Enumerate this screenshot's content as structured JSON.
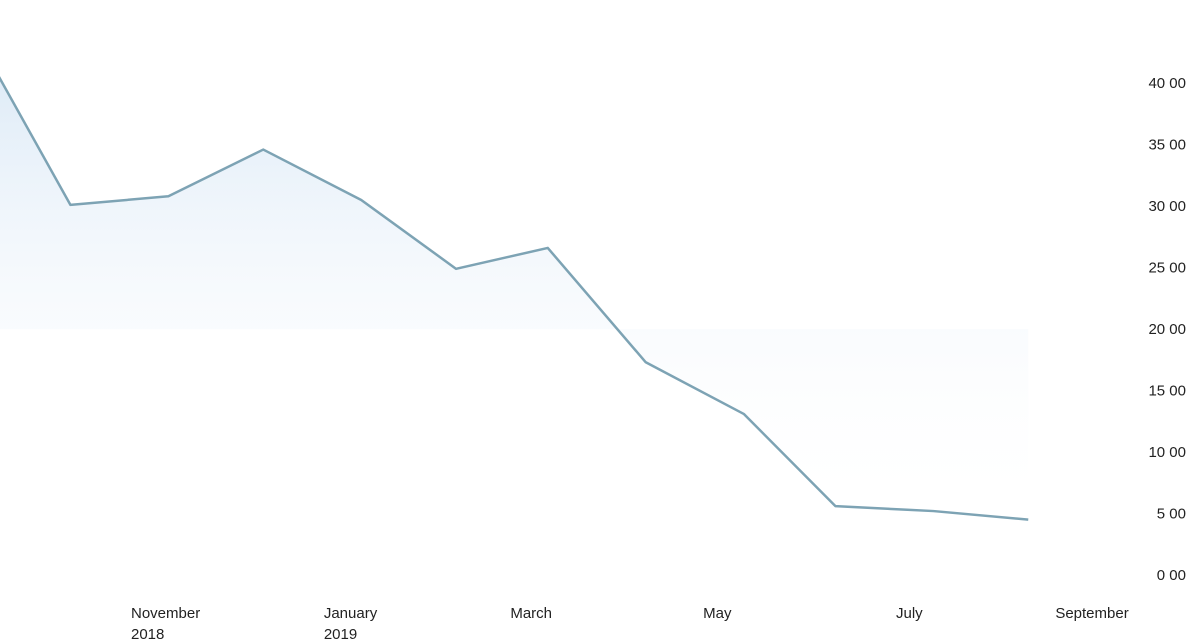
{
  "chart_data": {
    "type": "area",
    "title": "",
    "xlabel": "",
    "ylabel": "",
    "x": [
      "2018-09",
      "2018-10",
      "2018-11",
      "2018-12",
      "2019-01",
      "2019-02",
      "2019-03",
      "2019-04",
      "2019-05",
      "2019-06",
      "2019-07",
      "2019-08",
      "2019-09"
    ],
    "series": [
      {
        "values": [
          45.3,
          30.1,
          30.8,
          34.6,
          30.5,
          24.9,
          26.6,
          17.3,
          13.1,
          5.6,
          5.2,
          4.5
        ],
        "x": [
          "2018-09-13",
          "2018-10-16",
          "2018-11-16",
          "2018-12-16",
          "2019-01-16",
          "2019-02-15",
          "2019-03-16",
          "2019-04-16",
          "2019-05-17",
          "2019-06-15",
          "2019-07-16",
          "2019-08-15"
        ]
      }
    ],
    "y_ticks": [
      "0 00",
      "5 00",
      "10 00",
      "15 00",
      "20 00",
      "25 00",
      "30 00",
      "35 00",
      "40 00"
    ],
    "y_tick_values": [
      0,
      5,
      10,
      15,
      20,
      25,
      30,
      35,
      40
    ],
    "ylim": [
      0,
      45.3
    ],
    "x_ticks": [
      {
        "label": "November",
        "sublabel": "2018",
        "date": "2018-11"
      },
      {
        "label": "January",
        "sublabel": "2019",
        "date": "2019-01"
      },
      {
        "label": "March",
        "sublabel": "",
        "date": "2019-03"
      },
      {
        "label": "May",
        "sublabel": "",
        "date": "2019-05"
      },
      {
        "label": "July",
        "sublabel": "",
        "date": "2019-07"
      },
      {
        "label": "September",
        "sublabel": "",
        "date": "2019-09"
      }
    ],
    "y_axis_position": "right",
    "grid": false,
    "legend": "none",
    "colors": {
      "line": "#7da3b4",
      "fill_top": "#d6e6f5",
      "fill_bottom": "#ffffff",
      "text": "#222222"
    }
  }
}
